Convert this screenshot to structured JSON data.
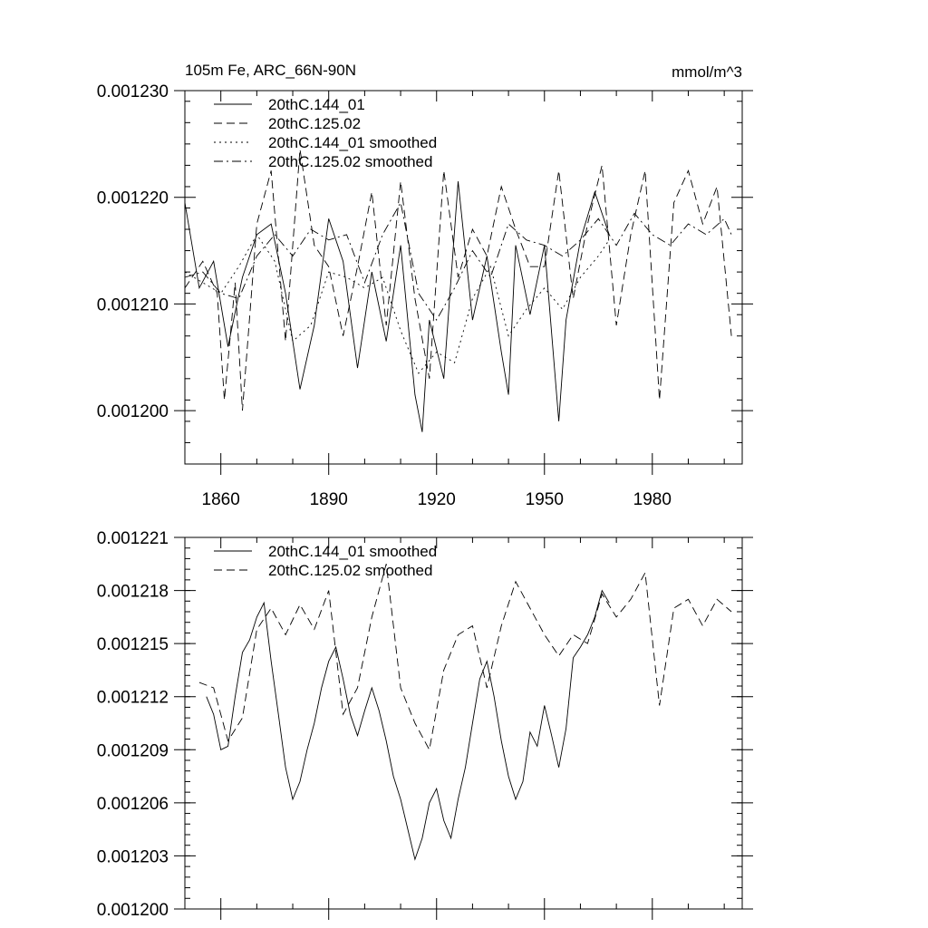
{
  "chart_data": [
    {
      "type": "line",
      "title_left": "105m Fe, ARC_66N-90N",
      "title_right": "mmol/m^3",
      "xlim": [
        1850,
        2005
      ],
      "ylim": [
        0.001195,
        0.00123
      ],
      "x_ticks": [
        "1860",
        "1890",
        "1920",
        "1950",
        "1980"
      ],
      "y_ticks": [
        "0.001200",
        "0.001210",
        "0.001220",
        "0.001230"
      ],
      "legend": [
        "20thC.144_01",
        "20thC.125.02",
        "20thC.144_01 smoothed",
        "20thC.125.02 smoothed"
      ],
      "series": [
        {
          "name": "20thC.144_01",
          "style": "solid",
          "x": [
            1850,
            1854,
            1858,
            1862,
            1866,
            1870,
            1874,
            1878,
            1882,
            1886,
            1890,
            1894,
            1898,
            1902,
            1906,
            1910,
            1914,
            1916,
            1918,
            1922,
            1926,
            1930,
            1934,
            1938,
            1940,
            1942,
            1946,
            1950,
            1954,
            1956,
            1960,
            1964,
            1968
          ],
          "values": [
            0.0012195,
            0.0012115,
            0.001214,
            0.001206,
            0.0012125,
            0.0012165,
            0.0012175,
            0.001211,
            0.001202,
            0.001208,
            0.001218,
            0.001214,
            0.001204,
            0.001213,
            0.0012065,
            0.0012155,
            0.0012015,
            0.001198,
            0.0012085,
            0.001203,
            0.0012215,
            0.0012085,
            0.0012145,
            0.0012055,
            0.0012015,
            0.0012155,
            0.001209,
            0.0012155,
            0.001199,
            0.0012085,
            0.001216,
            0.0012205,
            0.0012165
          ]
        },
        {
          "name": "20thC.125.02",
          "style": "dashed",
          "x": [
            1850,
            1855,
            1859,
            1861,
            1864,
            1866,
            1870,
            1874,
            1878,
            1882,
            1886,
            1890,
            1894,
            1898,
            1902,
            1906,
            1910,
            1914,
            1918,
            1922,
            1926,
            1930,
            1934,
            1938,
            1942,
            1946,
            1950,
            1954,
            1958,
            1962,
            1966,
            1970,
            1974,
            1978,
            1982,
            1986,
            1990,
            1994,
            1998,
            2002
          ],
          "values": [
            0.0012115,
            0.001214,
            0.001211,
            0.001201,
            0.001212,
            0.0012,
            0.0012175,
            0.0012225,
            0.0012065,
            0.0012245,
            0.0012155,
            0.0012135,
            0.001207,
            0.0012135,
            0.0012205,
            0.001208,
            0.0012215,
            0.0012105,
            0.001203,
            0.0012225,
            0.0012125,
            0.001217,
            0.0012145,
            0.001221,
            0.001217,
            0.0012135,
            0.0012135,
            0.0012225,
            0.0012105,
            0.0012175,
            0.001223,
            0.001208,
            0.0012165,
            0.0012225,
            0.001201,
            0.0012195,
            0.0012225,
            0.0012175,
            0.001221,
            0.001207
          ]
        },
        {
          "name": "20thC.144_01 smoothed",
          "style": "dotted",
          "x": [
            1850,
            1855,
            1860,
            1865,
            1870,
            1875,
            1880,
            1885,
            1890,
            1895,
            1900,
            1905,
            1910,
            1915,
            1920,
            1925,
            1930,
            1935,
            1940,
            1945,
            1950,
            1955,
            1960,
            1965,
            1968
          ],
          "values": [
            0.001213,
            0.001212,
            0.001211,
            0.0012135,
            0.0012165,
            0.001214,
            0.0012065,
            0.001208,
            0.001213,
            0.0012125,
            0.0012115,
            0.0012125,
            0.0012075,
            0.0012035,
            0.0012055,
            0.0012045,
            0.0012105,
            0.0012135,
            0.001207,
            0.0012095,
            0.0012115,
            0.0012095,
            0.0012125,
            0.0012145,
            0.001216
          ]
        },
        {
          "name": "20thC.125.02 smoothed",
          "style": "dashdot",
          "x": [
            1850,
            1855,
            1860,
            1865,
            1870,
            1875,
            1880,
            1885,
            1890,
            1895,
            1900,
            1905,
            1910,
            1915,
            1920,
            1925,
            1930,
            1935,
            1940,
            1945,
            1950,
            1955,
            1960,
            1965,
            1970,
            1975,
            1980,
            1985,
            1990,
            1995,
            2000,
            2002
          ],
          "values": [
            0.0012125,
            0.001213,
            0.001211,
            0.0012105,
            0.0012145,
            0.0012165,
            0.0012145,
            0.001217,
            0.001216,
            0.0012165,
            0.001212,
            0.0012165,
            0.0012195,
            0.001211,
            0.0012085,
            0.0012115,
            0.001215,
            0.0012125,
            0.0012175,
            0.001216,
            0.0012155,
            0.0012145,
            0.001216,
            0.001218,
            0.0012155,
            0.0012185,
            0.0012165,
            0.0012155,
            0.0012175,
            0.0012165,
            0.001218,
            0.0012165
          ]
        }
      ]
    },
    {
      "type": "line",
      "xlim": [
        1850,
        2005
      ],
      "ylim": [
        0.0012,
        0.001221
      ],
      "y_ticks": [
        "0.001200",
        "0.001203",
        "0.001206",
        "0.001209",
        "0.001212",
        "0.001215",
        "0.001218",
        "0.001221"
      ],
      "legend": [
        "20thC.144_01 smoothed",
        "20thC.125.02 smoothed"
      ],
      "series": [
        {
          "name": "20thC.144_01 smoothed",
          "style": "solid",
          "x": [
            1856,
            1858,
            1860,
            1862,
            1864,
            1866,
            1868,
            1870,
            1872,
            1874,
            1876,
            1878,
            1880,
            1882,
            1884,
            1886,
            1888,
            1890,
            1892,
            1894,
            1896,
            1898,
            1900,
            1902,
            1904,
            1906,
            1908,
            1910,
            1912,
            1914,
            1916,
            1918,
            1920,
            1922,
            1924,
            1926,
            1928,
            1930,
            1932,
            1934,
            1936,
            1938,
            1940,
            1942,
            1944,
            1946,
            1948,
            1950,
            1952,
            1954,
            1956,
            1958,
            1960,
            1962,
            1964,
            1966,
            1968
          ],
          "values": [
            0.001212,
            0.001211,
            0.001209,
            0.0012092,
            0.001212,
            0.0012145,
            0.0012152,
            0.0012165,
            0.0012173,
            0.001214,
            0.001211,
            0.001208,
            0.0012062,
            0.0012072,
            0.001209,
            0.0012105,
            0.0012125,
            0.001214,
            0.0012148,
            0.001213,
            0.001211,
            0.0012098,
            0.0012112,
            0.0012125,
            0.0012112,
            0.0012095,
            0.0012075,
            0.0012062,
            0.0012045,
            0.0012028,
            0.001204,
            0.001206,
            0.0012068,
            0.001205,
            0.001204,
            0.0012062,
            0.001208,
            0.0012105,
            0.001213,
            0.001214,
            0.001212,
            0.0012095,
            0.0012075,
            0.0012062,
            0.0012072,
            0.00121,
            0.0012092,
            0.0012115,
            0.0012098,
            0.001208,
            0.0012102,
            0.0012142,
            0.0012148,
            0.0012155,
            0.0012165,
            0.001218,
            0.0012173
          ]
        },
        {
          "name": "20thC.125.02 smoothed",
          "style": "dashed",
          "x": [
            1854,
            1858,
            1862,
            1866,
            1870,
            1874,
            1878,
            1882,
            1886,
            1890,
            1894,
            1898,
            1902,
            1906,
            1910,
            1914,
            1918,
            1922,
            1926,
            1930,
            1934,
            1938,
            1942,
            1946,
            1950,
            1954,
            1958,
            1962,
            1966,
            1970,
            1974,
            1978,
            1982,
            1986,
            1990,
            1994,
            1998,
            2002
          ],
          "values": [
            0.0012128,
            0.0012125,
            0.0012095,
            0.0012108,
            0.0012158,
            0.001217,
            0.0012155,
            0.0012172,
            0.0012158,
            0.001218,
            0.001211,
            0.0012125,
            0.0012165,
            0.0012195,
            0.0012125,
            0.0012105,
            0.001209,
            0.0012135,
            0.0012155,
            0.001216,
            0.0012125,
            0.001216,
            0.0012185,
            0.001217,
            0.0012155,
            0.0012143,
            0.0012155,
            0.001215,
            0.0012178,
            0.0012165,
            0.0012175,
            0.001219,
            0.0012115,
            0.001217,
            0.0012175,
            0.001216,
            0.0012175,
            0.0012168
          ]
        }
      ]
    }
  ]
}
